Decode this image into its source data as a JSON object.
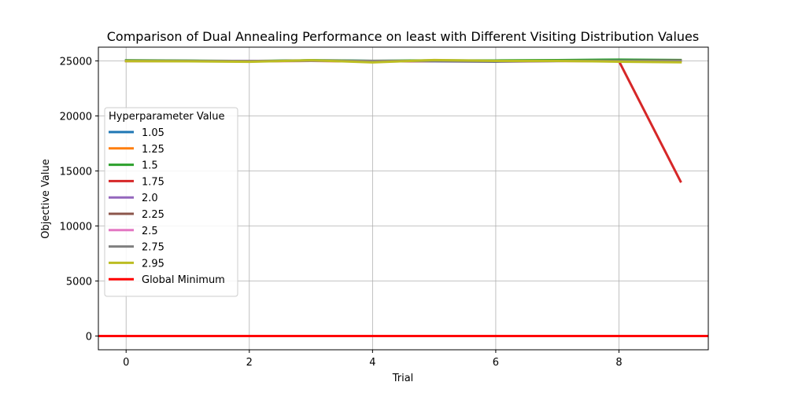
{
  "chart_data": {
    "type": "line",
    "title": "Comparison of Dual Annealing Performance on least with Different Visiting Distribution Values",
    "xlabel": "Trial",
    "ylabel": "Objective Value",
    "xlim": [
      -0.45,
      9.45
    ],
    "ylim": [
      -1250,
      26250
    ],
    "xticks": [
      0,
      2,
      4,
      6,
      8
    ],
    "yticks": [
      0,
      5000,
      10000,
      15000,
      20000,
      25000
    ],
    "xtick_labels": [
      "0",
      "2",
      "4",
      "6",
      "8"
    ],
    "ytick_labels": [
      "0",
      "5000",
      "10000",
      "15000",
      "20000",
      "25000"
    ],
    "grid": true,
    "legend": {
      "title": "Hyperparameter Value",
      "position": "center-left"
    },
    "x": [
      0,
      1,
      2,
      3,
      4,
      5,
      6,
      7,
      8,
      9
    ],
    "series": [
      {
        "name": "1.05",
        "color": "#1f77b4",
        "values": [
          25020,
          25010,
          24970,
          25050,
          25000,
          24960,
          24930,
          24990,
          25050,
          25000
        ]
      },
      {
        "name": "1.25",
        "color": "#ff7f0e",
        "values": [
          25000,
          24990,
          24980,
          25020,
          24970,
          25000,
          24980,
          25000,
          25010,
          25000
        ]
      },
      {
        "name": "1.5",
        "color": "#2ca02c",
        "values": [
          25050,
          25030,
          24990,
          25060,
          25010,
          25050,
          25040,
          25070,
          25120,
          25080
        ]
      },
      {
        "name": "1.75",
        "color": "#d62728",
        "values": [
          24980,
          24990,
          24970,
          25000,
          24950,
          24990,
          24980,
          24990,
          24980,
          14050
        ]
      },
      {
        "name": "2.0",
        "color": "#9467bd",
        "values": [
          25000,
          25000,
          24990,
          25010,
          24990,
          25000,
          25000,
          25000,
          25010,
          25020
        ]
      },
      {
        "name": "2.25",
        "color": "#8c564b",
        "values": [
          25010,
          25000,
          24980,
          25030,
          24990,
          25010,
          25000,
          25000,
          25000,
          25030
        ]
      },
      {
        "name": "2.5",
        "color": "#e377c2",
        "values": [
          24990,
          25000,
          24990,
          25000,
          25000,
          24990,
          24990,
          25000,
          24990,
          25000
        ]
      },
      {
        "name": "2.75",
        "color": "#7f7f7f",
        "values": [
          25000,
          25010,
          24980,
          25020,
          24980,
          25000,
          24990,
          25010,
          25000,
          24990
        ]
      },
      {
        "name": "2.95",
        "color": "#bcbd22",
        "values": [
          24980,
          24960,
          24920,
          25060,
          24870,
          25080,
          25000,
          25000,
          24930,
          24880
        ]
      }
    ],
    "hlines": [
      {
        "name": "Global Minimum",
        "color": "#ff0000",
        "value": 0
      }
    ]
  }
}
